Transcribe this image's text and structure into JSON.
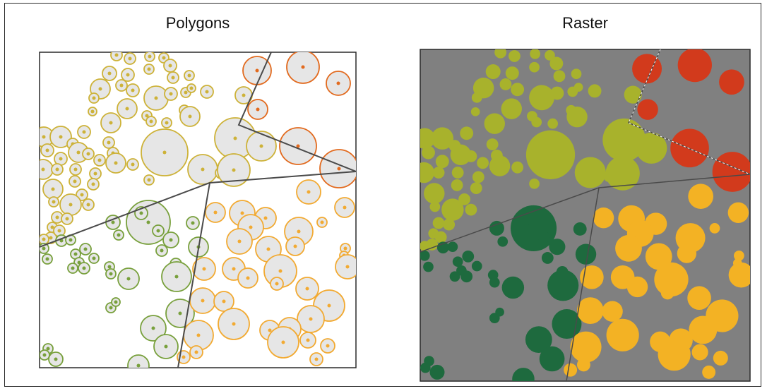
{
  "titles": {
    "polygons": "Polygons",
    "raster": "Raster"
  },
  "colors": {
    "frame": "#2a2a2a",
    "polygon_fill": "#e6e6e6",
    "raster_background": "#808080",
    "boundary_line": "#4a4a4a",
    "class_yellow_green": "#a8b22c",
    "class_red": "#d23a1c",
    "class_dark_green": "#1e6a3e",
    "class_orange": "#f3b224",
    "outline_yellow": "#cdb238",
    "outline_red": "#e26a1e",
    "outline_green": "#78a03c",
    "outline_orange": "#f2aa32"
  }
}
